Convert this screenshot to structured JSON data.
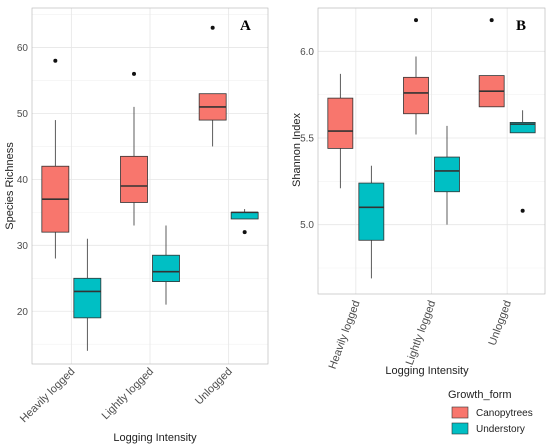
{
  "colors": {
    "canopy": "#f8766d",
    "understory": "#00bfc4",
    "grid_major": "#e6e6e6",
    "grid_minor": "#f2f2f2",
    "box_line": "#333333"
  },
  "legend": {
    "title": "Growth_form",
    "placement": "bottom-right",
    "items": [
      {
        "label": "Canopytrees",
        "color": "#f8766d"
      },
      {
        "label": "Understory",
        "color": "#00bfc4"
      }
    ]
  },
  "chart_data": [
    {
      "type": "boxplot",
      "panel_label": "A",
      "xlabel": "Logging Intensity",
      "ylabel": "Species Richness",
      "ylim": [
        12,
        66
      ],
      "yticks": [
        20,
        30,
        40,
        50,
        60
      ],
      "grid": true,
      "categories": [
        "Heavily logged",
        "Lightly logged",
        "Unlogged"
      ],
      "series": [
        {
          "name": "Canopytrees",
          "boxes": [
            {
              "whisker_low": 28,
              "q1": 32,
              "median": 37,
              "q3": 42,
              "whisker_high": 49,
              "outliers": [
                58
              ]
            },
            {
              "whisker_low": 33,
              "q1": 36.5,
              "median": 39,
              "q3": 43.5,
              "whisker_high": 51,
              "outliers": [
                56
              ]
            },
            {
              "whisker_low": 45,
              "q1": 49,
              "median": 51,
              "q3": 53,
              "whisker_high": 53,
              "outliers": [
                63
              ]
            }
          ]
        },
        {
          "name": "Understory",
          "boxes": [
            {
              "whisker_low": 14,
              "q1": 19,
              "median": 23,
              "q3": 25,
              "whisker_high": 31,
              "outliers": []
            },
            {
              "whisker_low": 21,
              "q1": 24.5,
              "median": 26,
              "q3": 28.5,
              "whisker_high": 33,
              "outliers": []
            },
            {
              "whisker_low": 34,
              "q1": 34,
              "median": 35,
              "q3": 35,
              "whisker_high": 35.5,
              "outliers": [
                32
              ]
            }
          ]
        }
      ]
    },
    {
      "type": "boxplot",
      "panel_label": "B",
      "xlabel": "Logging Intensity",
      "ylabel": "Shannon Index",
      "ylim": [
        4.6,
        6.25
      ],
      "yticks": [
        "5.0",
        "5.5",
        "6.0"
      ],
      "grid": true,
      "categories": [
        "Heavily logged",
        "Lightly logged",
        "Unlogged"
      ],
      "series": [
        {
          "name": "Canopytrees",
          "boxes": [
            {
              "whisker_low": 5.21,
              "q1": 5.44,
              "median": 5.54,
              "q3": 5.73,
              "whisker_high": 5.87,
              "outliers": []
            },
            {
              "whisker_low": 5.52,
              "q1": 5.64,
              "median": 5.76,
              "q3": 5.85,
              "whisker_high": 5.97,
              "outliers": [
                6.18
              ]
            },
            {
              "whisker_low": 5.68,
              "q1": 5.68,
              "median": 5.77,
              "q3": 5.86,
              "whisker_high": 5.86,
              "outliers": [
                6.18
              ]
            }
          ]
        },
        {
          "name": "Understory",
          "boxes": [
            {
              "whisker_low": 4.69,
              "q1": 4.91,
              "median": 5.1,
              "q3": 5.24,
              "whisker_high": 5.34,
              "outliers": []
            },
            {
              "whisker_low": 5.0,
              "q1": 5.19,
              "median": 5.31,
              "q3": 5.39,
              "whisker_high": 5.57,
              "outliers": []
            },
            {
              "whisker_low": 5.53,
              "q1": 5.53,
              "median": 5.58,
              "q3": 5.59,
              "whisker_high": 5.66,
              "outliers": [
                5.08
              ]
            }
          ]
        }
      ]
    }
  ]
}
